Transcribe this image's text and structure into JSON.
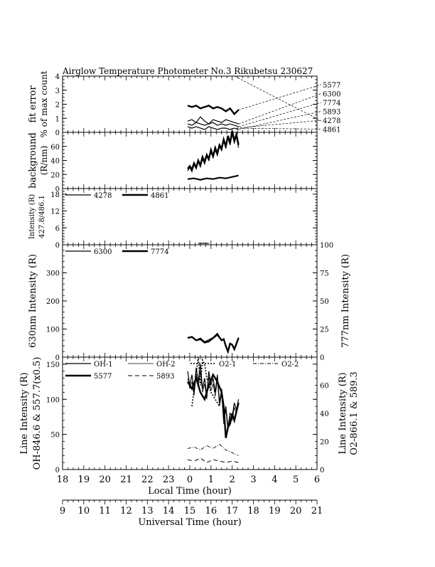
{
  "chart_data": {
    "type": "line",
    "title": "Airglow Temperature Photometer No.3  Rikubetsu    230627",
    "x_axes": {
      "local_time": {
        "label": "Local Time (hour)",
        "ticks": [
          "18",
          "19",
          "20",
          "21",
          "22",
          "23",
          "0",
          "1",
          "2",
          "3",
          "4",
          "5",
          "6"
        ],
        "range": [
          18,
          30
        ]
      },
      "universal_time": {
        "label": "Universal Time (hour)",
        "ticks": [
          "9",
          "10",
          "11",
          "12",
          "13",
          "14",
          "15",
          "16",
          "17",
          "18",
          "19",
          "20",
          "21"
        ],
        "range": [
          9,
          21
        ]
      }
    },
    "panels": [
      {
        "id": "fit_error",
        "ylabel": [
          "fit error",
          "% of max count"
        ],
        "ylim": [
          0,
          4
        ],
        "yticks": [
          "0",
          "1",
          "2",
          "3",
          "4"
        ],
        "right_labels": [
          "5577",
          "6300",
          "7774",
          "5893",
          "4278",
          "4861"
        ],
        "series": [
          {
            "name": "5577",
            "x": [
              23.9,
              24.1,
              24.3,
              24.5,
              24.7,
              24.9,
              25.1,
              25.3,
              25.5,
              25.7,
              25.9,
              26.1,
              26.3
            ],
            "values": [
              1.9,
              1.8,
              1.9,
              1.7,
              1.8,
              1.9,
              1.7,
              1.8,
              1.7,
              1.5,
              1.7,
              1.3,
              1.6
            ]
          },
          {
            "name": "6300",
            "x": [
              23.9,
              24.1,
              24.3,
              24.5,
              24.7,
              24.9,
              25.1,
              25.3,
              25.5,
              25.7,
              25.9,
              26.1,
              26.3
            ],
            "values": [
              0.8,
              0.9,
              0.7,
              1.1,
              0.8,
              0.6,
              0.9,
              0.8,
              0.7,
              0.9,
              0.8,
              0.7,
              0.6
            ]
          },
          {
            "name": "7774",
            "x": [
              23.9,
              24.1,
              24.3,
              24.5,
              24.7,
              24.9,
              25.1,
              25.3,
              25.5,
              25.7,
              25.9,
              26.1,
              26.3
            ],
            "values": [
              0.6,
              0.5,
              0.7,
              0.6,
              0.5,
              0.6,
              0.7,
              0.5,
              0.6,
              0.5,
              0.6,
              0.5,
              0.4
            ]
          },
          {
            "name": "5893",
            "x": [
              23.9,
              24.1,
              24.3,
              24.5,
              24.7,
              24.9,
              25.1,
              25.3,
              25.5,
              25.7,
              25.9,
              26.1,
              26.3
            ],
            "values": [
              0.4,
              0.3,
              0.4,
              0.3,
              0.2,
              0.4,
              0.3,
              0.2,
              0.3,
              0.3,
              0.2,
              0.3,
              0.2
            ]
          }
        ]
      },
      {
        "id": "background",
        "ylabel": [
          "background",
          "(R/nm)"
        ],
        "ylim": [
          0,
          80
        ],
        "yticks": [
          "0",
          "20",
          "40",
          "60"
        ],
        "series": [
          {
            "name": "5577",
            "x": [
              23.9,
              24.0,
              24.1,
              24.2,
              24.3,
              24.4,
              24.5,
              24.6,
              24.7,
              24.8,
              24.9,
              25.0,
              25.1,
              25.2,
              25.3,
              25.4,
              25.5,
              25.6,
              25.7,
              25.8,
              25.9,
              26.0,
              26.1,
              26.2,
              26.3
            ],
            "values": [
              28,
              32,
              27,
              36,
              30,
              40,
              33,
              45,
              38,
              48,
              42,
              55,
              46,
              58,
              50,
              62,
              57,
              70,
              60,
              75,
              65,
              82,
              68,
              77,
              62
            ]
          },
          {
            "name": "6300",
            "x": [
              23.9,
              24.0,
              24.1,
              24.2,
              24.3,
              24.4,
              24.5,
              24.6,
              24.7,
              24.8,
              24.9,
              25.0,
              25.1,
              25.2,
              25.3,
              25.4,
              25.5,
              25.6,
              25.7,
              25.8,
              25.9,
              26.0,
              26.1,
              26.2,
              26.3
            ],
            "values": [
              25,
              30,
              24,
              34,
              28,
              38,
              31,
              42,
              35,
              46,
              40,
              52,
              44,
              55,
              47,
              60,
              54,
              68,
              57,
              72,
              62,
              78,
              65,
              74,
              58
            ]
          },
          {
            "name": "7774",
            "x": [
              23.9,
              24.2,
              24.5,
              24.8,
              25.1,
              25.4,
              25.7,
              26.0,
              26.3
            ],
            "values": [
              14,
              15,
              13,
              15,
              14,
              16,
              15,
              17,
              19
            ]
          },
          {
            "name": "5893",
            "x": [
              23.9,
              24.2,
              24.5,
              24.8,
              25.1,
              25.4,
              25.7,
              26.0,
              26.3
            ],
            "values": [
              13,
              14,
              12,
              14,
              13,
              15,
              14,
              16,
              18
            ]
          }
        ]
      },
      {
        "id": "blue_lines",
        "ylabel": [
          "Intensity (R)",
          "427.8/486.1"
        ],
        "ylim": [
          0,
          20
        ],
        "yticks": [
          "0",
          "6",
          "12",
          "18"
        ],
        "legend": [
          {
            "name": "4278",
            "style": "solid"
          },
          {
            "name": "4861",
            "style": "solid-thick"
          }
        ],
        "series": [
          {
            "name": "4278",
            "x": [
              24.4,
              24.9
            ],
            "values": [
              0.5,
              0.5
            ]
          }
        ]
      },
      {
        "id": "oi_lines",
        "ylabel_left": "630nm Intensity (R)",
        "ylabel_right": "777nm Intensity (R)",
        "ylim_left": [
          0,
          400
        ],
        "ylim_right": [
          0,
          100
        ],
        "yticks_left": [
          "0",
          "100",
          "200",
          "300"
        ],
        "yticks_right": [
          "0",
          "25",
          "50",
          "75",
          "100"
        ],
        "legend": [
          {
            "name": "6300",
            "style": "solid"
          },
          {
            "name": "7774",
            "style": "solid-thick"
          }
        ],
        "series": [
          {
            "name": "6300",
            "axis": "left",
            "x": [
              23.9,
              24.1,
              24.3,
              24.5,
              24.7,
              24.9,
              25.1,
              25.3,
              25.5,
              25.6,
              25.7,
              25.8,
              25.9,
              26.0,
              26.1,
              26.3
            ],
            "values": [
              70,
              72,
              60,
              68,
              55,
              62,
              70,
              85,
              60,
              65,
              40,
              20,
              50,
              45,
              30,
              70
            ]
          },
          {
            "name": "7774",
            "axis": "right",
            "x": [
              23.9,
              24.1,
              24.3,
              24.5,
              24.7,
              24.9,
              25.1,
              25.3,
              25.5,
              25.6,
              25.7,
              25.8,
              25.9,
              26.0,
              26.1,
              26.3
            ],
            "values": [
              17,
              18,
              15,
              16,
              13,
              14,
              17,
              20,
              15,
              16,
              10,
              5,
              12,
              11,
              7,
              17
            ]
          }
        ]
      },
      {
        "id": "line_intensity",
        "ylabel_left": [
          "Line Intensity (R)",
          "OH-846.6 & 557.7(x0.5)"
        ],
        "ylabel_right": [
          "Line Intensity (R)",
          "O2-866.1 & 589.3"
        ],
        "ylim_left": [
          0,
          160
        ],
        "ylim_right": [
          0,
          80
        ],
        "yticks_left": [
          "0",
          "50",
          "100",
          "150"
        ],
        "yticks_right": [
          "0",
          "20",
          "40",
          "60"
        ],
        "legend": [
          {
            "name": "OH-1",
            "style": "solid"
          },
          {
            "name": "OH-2",
            "style": "solid-thin"
          },
          {
            "name": "O2-1",
            "style": "dotted"
          },
          {
            "name": "O2-2",
            "style": "dashdot"
          },
          {
            "name": "5577",
            "style": "solid-thick"
          },
          {
            "name": "5893",
            "style": "dashed"
          }
        ],
        "series": [
          {
            "name": "OH-1",
            "axis": "left",
            "x": [
              23.9,
              24.0,
              24.1,
              24.2,
              24.3,
              24.4,
              24.5,
              24.6,
              24.7,
              24.8,
              24.9,
              25.0,
              25.1,
              25.2,
              25.3,
              25.4,
              25.5,
              25.6,
              25.7,
              25.8,
              25.9,
              26.0,
              26.1,
              26.2,
              26.3
            ],
            "values": [
              140,
              120,
              135,
              110,
              145,
              125,
              150,
              115,
              130,
              105,
              140,
              120,
              130,
              110,
              135,
              95,
              115,
              70,
              90,
              60,
              80,
              75,
              95,
              85,
              100
            ]
          },
          {
            "name": "OH-2",
            "axis": "left",
            "x": [
              23.9,
              24.0,
              24.1,
              24.2,
              24.3,
              24.4,
              24.5,
              24.6,
              24.7,
              24.8,
              24.9,
              25.0,
              25.1,
              25.2,
              25.3,
              25.4,
              25.5,
              25.6,
              25.7,
              25.8,
              25.9,
              26.0,
              26.1,
              26.2,
              26.3
            ],
            "values": [
              130,
              115,
              125,
              105,
              135,
              118,
              140,
              110,
              122,
              100,
              132,
              112,
              122,
              104,
              128,
              90,
              108,
              65,
              85,
              55,
              75,
              70,
              88,
              80,
              95
            ]
          },
          {
            "name": "5577",
            "axis": "left",
            "x": [
              23.9,
              24.1,
              24.3,
              24.5,
              24.7,
              24.9,
              25.1,
              25.3,
              25.5,
              25.6,
              25.7,
              25.8,
              25.9,
              26.0,
              26.1,
              26.3
            ],
            "values": [
              125,
              115,
              130,
              110,
              100,
              120,
              135,
              125,
              110,
              90,
              45,
              60,
              65,
              80,
              70,
              95
            ]
          },
          {
            "name": "O2-1",
            "axis": "right",
            "x": [
              24.1,
              24.3,
              24.4,
              24.5,
              24.6,
              24.7,
              24.8,
              25.0,
              25.2,
              25.4
            ],
            "values": [
              45,
              68,
              80,
              60,
              78,
              75,
              65,
              55,
              50,
              45
            ]
          },
          {
            "name": "O2-2",
            "axis": "right",
            "x": [
              23.9,
              24.2,
              24.5,
              24.8,
              25.1,
              25.4,
              25.7,
              26.0,
              26.3
            ],
            "values": [
              15,
              16,
              14,
              17,
              15,
              18,
              14,
              12,
              10
            ]
          },
          {
            "name": "5893",
            "axis": "right",
            "x": [
              23.9,
              24.2,
              24.5,
              24.8,
              25.1,
              25.4,
              25.7,
              26.0,
              26.3
            ],
            "values": [
              7,
              6,
              8,
              5,
              7,
              6,
              5,
              6,
              5
            ]
          }
        ]
      }
    ]
  }
}
